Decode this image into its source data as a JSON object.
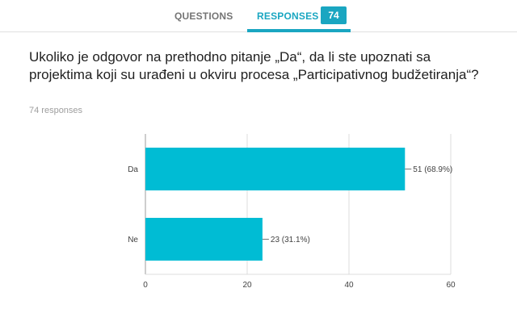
{
  "header": {
    "tabs": [
      {
        "label": "QUESTIONS",
        "active": false
      },
      {
        "label": "RESPONSES",
        "active": true
      }
    ],
    "response_badge": "74",
    "accent_color": "#1aa6c1"
  },
  "question": {
    "title": "Ukoliko je odgovor na prethodno pitanje „Da“, da li ste upoznati sa projektima koji su urađeni u okviru procesa „Participativnog budžetiranja“?",
    "response_count": "74 responses"
  },
  "chart_data": {
    "type": "bar",
    "orientation": "horizontal",
    "categories": [
      "Da",
      "Ne"
    ],
    "values": [
      51,
      23
    ],
    "data_labels": [
      "51 (68.9%)",
      "23 (31.1%)"
    ],
    "xlim": [
      0,
      60
    ],
    "xticks": [
      0,
      20,
      40,
      60
    ],
    "grid": true,
    "bar_color": "#00bcd4"
  }
}
